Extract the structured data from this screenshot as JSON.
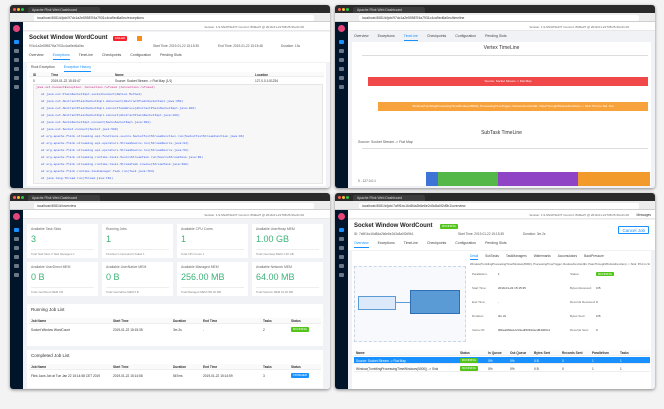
{
  "top_left": {
    "tab": "Apache Flink Web Dashboard",
    "url": "localhost:8081/#/job/97dc1a2e59587f4a7931c4ca9ed6a0ec/exceptions",
    "version": "Version: 1.9-SNAPSHOT  Commit: 8fd3a37 @ 2019-01-21T08:25:36+01:00",
    "job_title": "Socket Window WordCount",
    "status": "FAILED",
    "job_id": "97dc1a2e59587f4a7931c4ca9ed6a0ec",
    "start_time": "Start Time: 2019-01-22 15:15:35",
    "end_time": "End Time: 2019-01-22 15:15:48",
    "duration": "Duration: 13s",
    "tabs": [
      "Overview",
      "Exceptions",
      "TimeLine",
      "Checkpoints",
      "Configuration",
      "Pending Slots"
    ],
    "sub_tabs": [
      "Root Exception",
      "Exception History"
    ],
    "table_header": [
      "ID",
      "Time",
      "Name",
      "Location"
    ],
    "row": [
      "0",
      "2019-01-22 15:15:47",
      "Source: Socket Stream -> Flat Map (1/1)",
      "127.0.0.1:51234"
    ],
    "trace": [
      "java.net.ConnectException: Connection refused (Connection refused)",
      "at java.net.PlainSocketImpl.socketConnect(Native Method)",
      "at java.net.AbstractPlainSocketImpl.doConnect(AbstractPlainSocketImpl.java:350)",
      "at java.net.AbstractPlainSocketImpl.connectToAddress(AbstractPlainSocketImpl.java:206)",
      "at java.net.AbstractPlainSocketImpl.connect(AbstractPlainSocketImpl.java:188)",
      "at java.net.SocksSocketImpl.connect(SocksSocketImpl.java:392)",
      "at java.net.Socket.connect(Socket.java:589)",
      "at org.apache.flink.streaming.api.functions.source.SocketTextStreamFunction.run(SocketTextStreamFunction.java:96)",
      "at org.apache.flink.streaming.api.operators.StreamSource.run(StreamSource.java:94)",
      "at org.apache.flink.streaming.api.operators.StreamSource.run(StreamSource.java:58)",
      "at org.apache.flink.streaming.runtime.tasks.SourceStreamTask.run(SourceStreamTask.java:99)",
      "at org.apache.flink.streaming.runtime.tasks.StreamTask.invoke(StreamTask.java:300)",
      "at org.apache.flink.runtime.taskmanager.Task.run(Task.java:704)",
      "at java.lang.Thread.run(Thread.java:748)"
    ]
  },
  "top_right": {
    "tab": "Apache Flink Web Dashboard",
    "url": "localhost:8081/#/job/97dc1a2e59587f4a7931c4ca9ed6a0ec/timeline",
    "version": "Version: 1.9-SNAPSHOT  Commit: 8fd3a37 @ 2019-01-21T08:25:36+01:00",
    "tabs": [
      "Overview",
      "Exceptions",
      "TimeLine",
      "Checkpoints",
      "Configuration",
      "Pending Slots"
    ],
    "vertex_title": "Vertex TimeLine",
    "vertex_bars": [
      "Source: Socket Stream -> Flat Map",
      "Window(TumblingProcessingTimeWindows(5000), ProcessingTimeTrigger, ReduceFunction$1, PassThroughWindowFunction) -> Sink: Print to Std. Out"
    ],
    "subtask_title": "SubTask TimeLine",
    "subtask_name": "Source: Socket Stream -> Flat Map",
    "subtask_row": "0 - 127.0.0.1"
  },
  "bottom_left": {
    "tab": "Apache Flink Web Dashboard",
    "url": "localhost:8081/#/overview",
    "version": "Version: 1.9-SNAPSHOT  Commit: 8fd3a37 @ 2019-01-21T08:25:36+01:00",
    "cards": [
      {
        "label": "Available Task Slots",
        "value": "3",
        "sub": "Total Task Slots 3   Task Managers 1"
      },
      {
        "label": "Running Jobs",
        "value": "1",
        "sub": "Finished 1  Canceled 0  Failed 1"
      },
      {
        "label": "Available CPU Cores",
        "value": "1",
        "sub": "Total CPU Cores 1"
      },
      {
        "label": "Available UserHeap MEM",
        "value": "1.00 GB",
        "sub": "Total UserHeap MEM 1.00 GB"
      },
      {
        "label": "Available UserDirect MEM",
        "value": "0 B",
        "sub": "Total UserDirect MEM 0 B"
      },
      {
        "label": "Available UserNative MEM",
        "value": "0 B",
        "sub": "Total UserNative MEM 0 B"
      },
      {
        "label": "Available Managed MEM",
        "value": "256.00 MB",
        "sub": "Total Managed MEM 256.00 MB"
      },
      {
        "label": "Available Network MEM",
        "value": "64.00 MB",
        "sub": "Total Network MEM 64.00 MB"
      }
    ],
    "running_title": "Running Job List",
    "completed_title": "Completed Job List",
    "table_header": [
      "Job Name",
      "Start Time",
      "Duration",
      "End Time",
      "Tasks",
      "Status"
    ],
    "running_row": [
      "Socket Window WordCount",
      "2019-01-22 15:15:35",
      "3m 2s",
      "-",
      "2",
      "RUNNING"
    ],
    "completed_row": [
      "Flink Java Job at Tue Jan 22 15:14:58 CET 2019",
      "2019-01-22 15:14:58",
      "567ms",
      "2019-01-22 15:14:59",
      "3",
      "FINISHED"
    ]
  },
  "bottom_right": {
    "tab": "Apache Flink Web Dashboard",
    "url": "localhost:8081/#/job/7a9f1bc16d84a2b6e6e2d3c8a0f2d9b1/overview",
    "version": "Version: 1.9-SNAPSHOT  Commit: 8fd3a37 @ 2019-01-21T08:25:36+01:00",
    "messages": "Messages",
    "job_title": "Socket Window WordCount",
    "status": "RUNNING",
    "cancel": "Cancel Job",
    "job_id": "ID: 7a9f1bc16d84a2b6e6e2d3c8a0f2d9b1",
    "start_time": "Start Time: 2019-01-22 15:15:35",
    "duration": "Duration: 3m 2s",
    "tabs": [
      "Overview",
      "Exceptions",
      "TimeLine",
      "Checkpoints",
      "Configuration",
      "Pending Slots"
    ],
    "sub_tabs": [
      "Detail",
      "SubTasks",
      "TaskManagers",
      "Watermarks",
      "Accumulators",
      "BackPressure"
    ],
    "vertex_name": "Window(TumblingProcessingTimeWindows(5000), ProcessingTimeTrigger, ReduceFunction$1, PassThroughWindowFunction) -> Sink: Print to Std. Out",
    "details": [
      [
        "Parallelism:",
        "1"
      ],
      [
        "Status:",
        "RUNNING"
      ],
      [
        "Start Time:",
        "2019-01-22 15:15:35"
      ],
      [
        "Bytes Received:",
        "0 B"
      ],
      [
        "End Time:",
        "-"
      ],
      [
        "Records Received:",
        "0"
      ],
      [
        "Duration:",
        "3m 2s"
      ],
      [
        "Bytes Sent:",
        "0 B"
      ],
      [
        "Vertex ID:",
        "90bea66de1c231edf33913ecd54406c1"
      ],
      [
        "Records Sent:",
        "0"
      ]
    ],
    "table_header": [
      "Name",
      "Status",
      "In Queue",
      "Out Queue",
      "Bytes Sent",
      "Records Sent",
      "Parallelism",
      "Tasks"
    ],
    "rows": [
      [
        "Source: Socket Stream -> Flat Map",
        "RUNNING",
        "0%",
        "0%",
        "0 B",
        "0",
        "1",
        "1"
      ],
      [
        "Window(TumblingProcessingTimeWindows(5000)) -> Sink",
        "RUNNING",
        "0%",
        "0%",
        "0 B",
        "0",
        "1",
        "1"
      ]
    ]
  }
}
